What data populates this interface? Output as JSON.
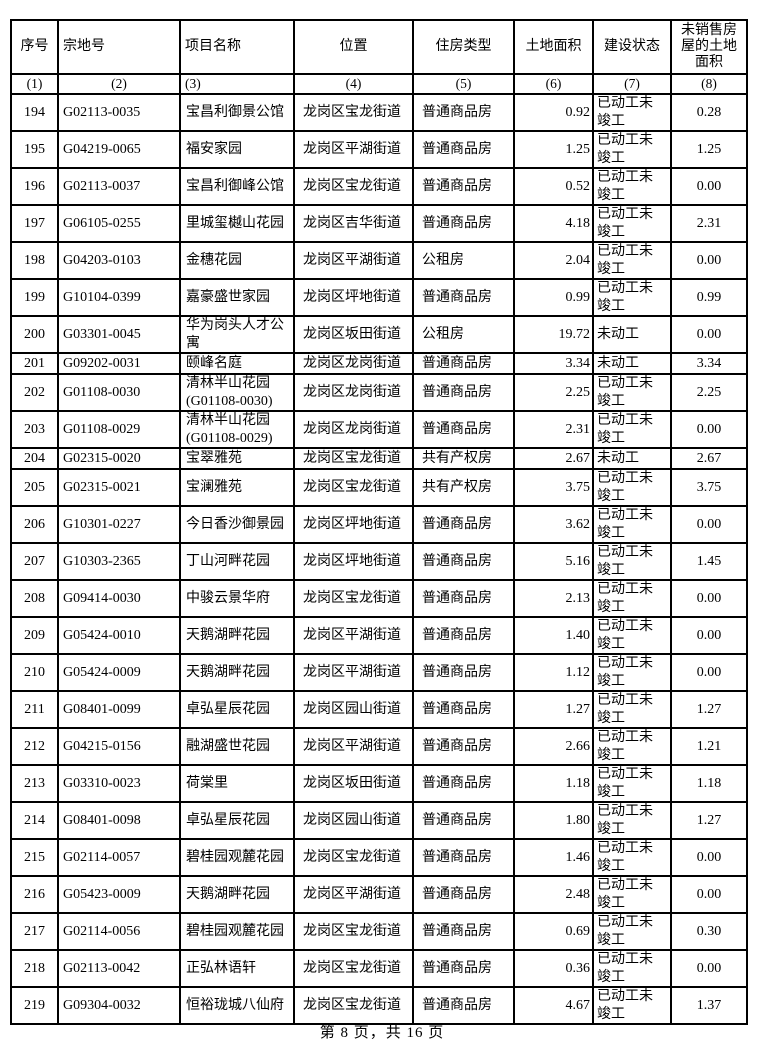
{
  "document": {
    "footer": "第 8 页，共 16 页"
  },
  "table": {
    "headers": [
      "序号",
      "宗地号",
      "项目名称",
      "位置",
      "住房类型",
      "土地面积",
      "建设状态",
      "未销售房\n屋的土地\n面积"
    ],
    "column_indices": [
      "(1)",
      "(2)",
      "(3)",
      "(4)",
      "(5)",
      "(6)",
      "(7)",
      "(8)"
    ],
    "rows": [
      [
        "194",
        "G02113-0035",
        "宝昌利御景公馆",
        "龙岗区宝龙街道",
        "普通商品房",
        "0.92",
        "已动工未\n竣工",
        "0.28"
      ],
      [
        "195",
        "G04219-0065",
        "福安家园",
        "龙岗区平湖街道",
        "普通商品房",
        "1.25",
        "已动工未\n竣工",
        "1.25"
      ],
      [
        "196",
        "G02113-0037",
        "宝昌利御峰公馆",
        "龙岗区宝龙街道",
        "普通商品房",
        "0.52",
        "已动工未\n竣工",
        "0.00"
      ],
      [
        "197",
        "G06105-0255",
        "里城玺樾山花园",
        "龙岗区吉华街道",
        "普通商品房",
        "4.18",
        "已动工未\n竣工",
        "2.31"
      ],
      [
        "198",
        "G04203-0103",
        "金穗花园",
        "龙岗区平湖街道",
        "公租房",
        "2.04",
        "已动工未\n竣工",
        "0.00"
      ],
      [
        "199",
        "G10104-0399",
        "嘉豪盛世家园",
        "龙岗区坪地街道",
        "普通商品房",
        "0.99",
        "已动工未\n竣工",
        "0.99"
      ],
      [
        "200",
        "G03301-0045",
        "华为岗头人才公\n寓",
        "龙岗区坂田街道",
        "公租房",
        "19.72",
        "未动工",
        "0.00"
      ],
      [
        "201",
        "G09202-0031",
        "颐峰名庭",
        "龙岗区龙岗街道",
        "普通商品房",
        "3.34",
        "未动工",
        "3.34"
      ],
      [
        "202",
        "G01108-0030",
        "清林半山花园\n(G01108-0030)",
        "龙岗区龙岗街道",
        "普通商品房",
        "2.25",
        "已动工未\n竣工",
        "2.25"
      ],
      [
        "203",
        "G01108-0029",
        "清林半山花园\n(G01108-0029)",
        "龙岗区龙岗街道",
        "普通商品房",
        "2.31",
        "已动工未\n竣工",
        "0.00"
      ],
      [
        "204",
        "G02315-0020",
        "宝翠雅苑",
        "龙岗区宝龙街道",
        "共有产权房",
        "2.67",
        "未动工",
        "2.67"
      ],
      [
        "205",
        "G02315-0021",
        "宝澜雅苑",
        "龙岗区宝龙街道",
        "共有产权房",
        "3.75",
        "已动工未\n竣工",
        "3.75"
      ],
      [
        "206",
        "G10301-0227",
        "今日香沙御景园",
        "龙岗区坪地街道",
        "普通商品房",
        "3.62",
        "已动工未\n竣工",
        "0.00"
      ],
      [
        "207",
        "G10303-2365",
        "丁山河畔花园",
        "龙岗区坪地街道",
        "普通商品房",
        "5.16",
        "已动工未\n竣工",
        "1.45"
      ],
      [
        "208",
        "G09414-0030",
        "中骏云景华府",
        "龙岗区宝龙街道",
        "普通商品房",
        "2.13",
        "已动工未\n竣工",
        "0.00"
      ],
      [
        "209",
        "G05424-0010",
        "天鹅湖畔花园",
        "龙岗区平湖街道",
        "普通商品房",
        "1.40",
        "已动工未\n竣工",
        "0.00"
      ],
      [
        "210",
        "G05424-0009",
        "天鹅湖畔花园",
        "龙岗区平湖街道",
        "普通商品房",
        "1.12",
        "已动工未\n竣工",
        "0.00"
      ],
      [
        "211",
        "G08401-0099",
        "卓弘星辰花园",
        "龙岗区园山街道",
        "普通商品房",
        "1.27",
        "已动工未\n竣工",
        "1.27"
      ],
      [
        "212",
        "G04215-0156",
        "融湖盛世花园",
        "龙岗区平湖街道",
        "普通商品房",
        "2.66",
        "已动工未\n竣工",
        "1.21"
      ],
      [
        "213",
        "G03310-0023",
        "荷棠里",
        "龙岗区坂田街道",
        "普通商品房",
        "1.18",
        "已动工未\n竣工",
        "1.18"
      ],
      [
        "214",
        "G08401-0098",
        "卓弘星辰花园",
        "龙岗区园山街道",
        "普通商品房",
        "1.80",
        "已动工未\n竣工",
        "1.27"
      ],
      [
        "215",
        "G02114-0057",
        "碧桂园观麓花园",
        "龙岗区宝龙街道",
        "普通商品房",
        "1.46",
        "已动工未\n竣工",
        "0.00"
      ],
      [
        "216",
        "G05423-0009",
        "天鹅湖畔花园",
        "龙岗区平湖街道",
        "普通商品房",
        "2.48",
        "已动工未\n竣工",
        "0.00"
      ],
      [
        "217",
        "G02114-0056",
        "碧桂园观麓花园",
        "龙岗区宝龙街道",
        "普通商品房",
        "0.69",
        "已动工未\n竣工",
        "0.30"
      ],
      [
        "218",
        "G02113-0042",
        "正弘林语轩",
        "龙岗区宝龙街道",
        "普通商品房",
        "0.36",
        "已动工未\n竣工",
        "0.00"
      ],
      [
        "219",
        "G09304-0032",
        "恒裕珑城八仙府",
        "龙岗区宝龙街道",
        "普通商品房",
        "4.67",
        "已动工未\n竣工",
        "1.37"
      ]
    ]
  }
}
